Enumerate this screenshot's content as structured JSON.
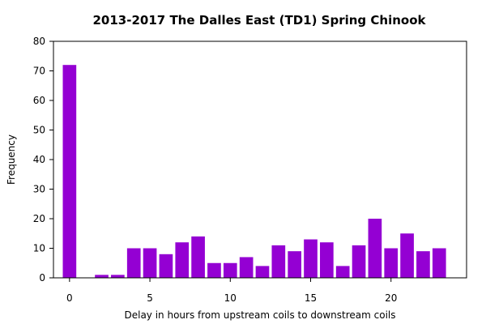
{
  "chart_data": {
    "type": "bar",
    "title": "2013-2017 The Dalles East (TD1) Spring Chinook",
    "xlabel": "Delay in hours from upstream coils to downstream coils",
    "ylabel": "Frequency",
    "x": [
      0,
      2,
      3,
      4,
      5,
      6,
      7,
      8,
      9,
      10,
      11,
      12,
      13,
      14,
      15,
      16,
      17,
      18,
      19,
      20,
      21,
      22,
      23
    ],
    "values": [
      72,
      1,
      1,
      10,
      10,
      8,
      12,
      14,
      5,
      5,
      7,
      4,
      11,
      9,
      13,
      12,
      4,
      11,
      20,
      10,
      15,
      9,
      10
    ],
    "xlim": [
      -1,
      24.7
    ],
    "ylim": [
      0,
      80
    ],
    "xticks": [
      0,
      5,
      10,
      15,
      20
    ],
    "yticks": [
      0,
      10,
      20,
      30,
      40,
      50,
      60,
      70,
      80
    ],
    "bar_color": "#9400d3",
    "grid": false,
    "legend": "none"
  }
}
